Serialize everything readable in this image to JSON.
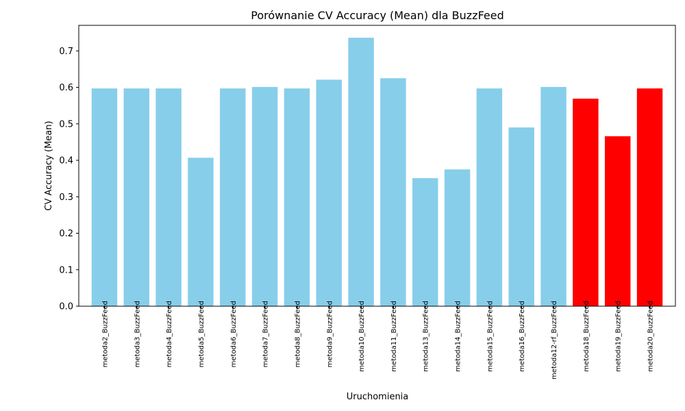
{
  "chart_data": {
    "type": "bar",
    "title": "Porównanie CV Accuracy (Mean) dla BuzzFeed",
    "xlabel": "Uruchomienia",
    "ylabel": "CV Accuracy (Mean)",
    "ylim": [
      0,
      0.77
    ],
    "yticks": [
      "0.0",
      "0.1",
      "0.2",
      "0.3",
      "0.4",
      "0.5",
      "0.6",
      "0.7"
    ],
    "grid": false,
    "categories": [
      "metoda2_BuzzFeed",
      "metoda3_BuzzFeed",
      "metoda4_BuzzFeed",
      "metoda5_BuzzFeed",
      "metoda6_BuzzFeed",
      "metoda7_BuzzFeed",
      "metoda8_BuzzFeed",
      "metoda9_BuzzFeed",
      "metoda10_BuzzFeed",
      "metoda11_BuzzFeed",
      "metoda13_BuzzFeed",
      "metoda14_BuzzFeed",
      "metoda15_BuzzFeed",
      "metoda16_BuzzFeed",
      "metoda12-rf_BuzzFeed",
      "metoda18_BuzzFeed",
      "metoda19_BuzzFeed",
      "metoda20_BuzzFeed"
    ],
    "values": [
      0.597,
      0.597,
      0.597,
      0.407,
      0.597,
      0.601,
      0.597,
      0.621,
      0.736,
      0.625,
      0.351,
      0.375,
      0.597,
      0.49,
      0.601,
      0.569,
      0.466,
      0.597
    ],
    "colors": [
      "#87ceeb",
      "#87ceeb",
      "#87ceeb",
      "#87ceeb",
      "#87ceeb",
      "#87ceeb",
      "#87ceeb",
      "#87ceeb",
      "#87ceeb",
      "#87ceeb",
      "#87ceeb",
      "#87ceeb",
      "#87ceeb",
      "#87ceeb",
      "#87ceeb",
      "#ff0000",
      "#ff0000",
      "#ff0000"
    ]
  }
}
